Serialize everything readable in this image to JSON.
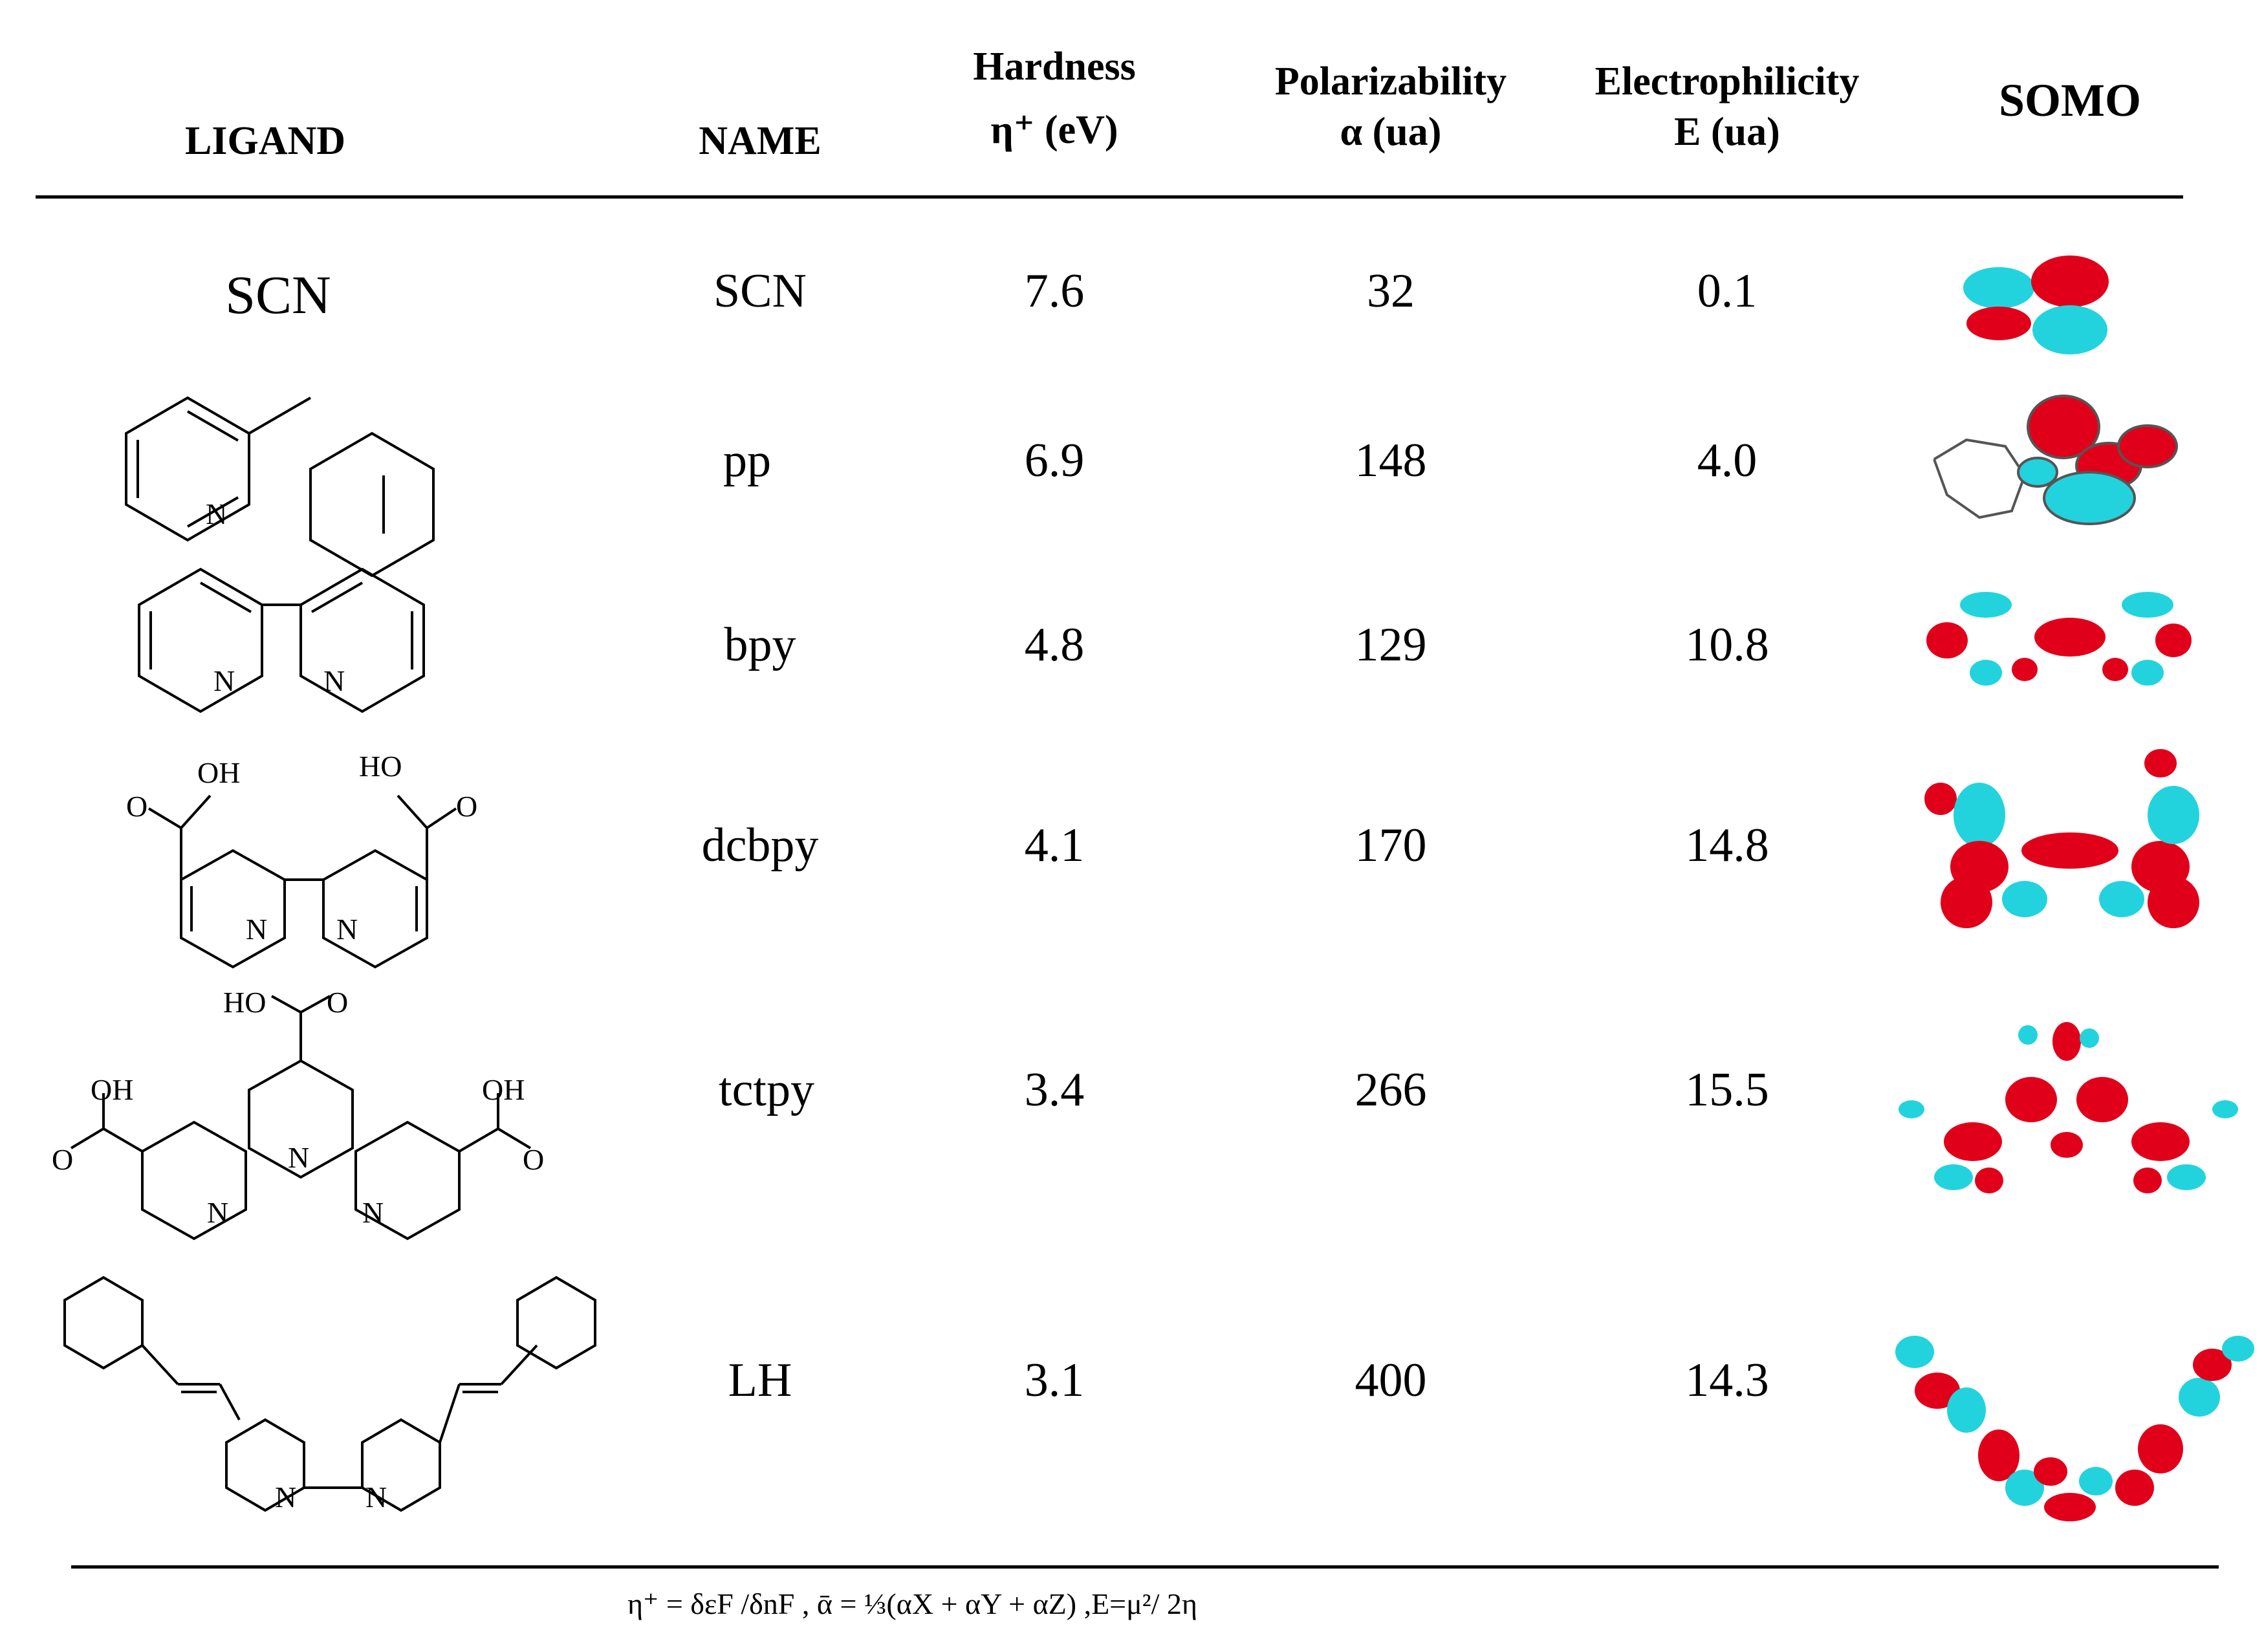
{
  "headers": {
    "ligand": "LIGAND",
    "name": "NAME",
    "hardness_line1": "Hardness",
    "hardness_line2": "η⁺ (eV)",
    "polarizability_line1": "Polarizability",
    "polarizability_line2": "α (ua)",
    "electrophilicity_line1": "Electrophilicity",
    "electrophilicity_line2": "E (ua)",
    "somo": "SOMO"
  },
  "rows": [
    {
      "ligand_label": "SCN",
      "name": "SCN",
      "hardness": "7.6",
      "polarizability": "32",
      "electrophilicity": "0.1"
    },
    {
      "name": "pp",
      "hardness": "6.9",
      "polarizability": "148",
      "electrophilicity": "4.0"
    },
    {
      "name": "bpy",
      "hardness": "4.8",
      "polarizability": "129",
      "electrophilicity": "10.8"
    },
    {
      "name": "dcbpy",
      "hardness": "4.1",
      "polarizability": "170",
      "electrophilicity": "14.8"
    },
    {
      "name": "tctpy",
      "hardness": "3.4",
      "polarizability": "266",
      "electrophilicity": "15.5"
    },
    {
      "name": "LH",
      "hardness": "3.1",
      "polarizability": "400",
      "electrophilicity": "14.3"
    }
  ],
  "structure_labels": {
    "N": "N",
    "OH": "OH",
    "HO": "HO",
    "O": "O"
  },
  "footnote": "η⁺ = δεF /δnF , ᾱ = ⅓(αX + αY + αZ) ,E=μ²/ 2η",
  "colors": {
    "lobe_red": "#e0001a",
    "lobe_cyan": "#22d3dd",
    "rule": "#000000"
  }
}
